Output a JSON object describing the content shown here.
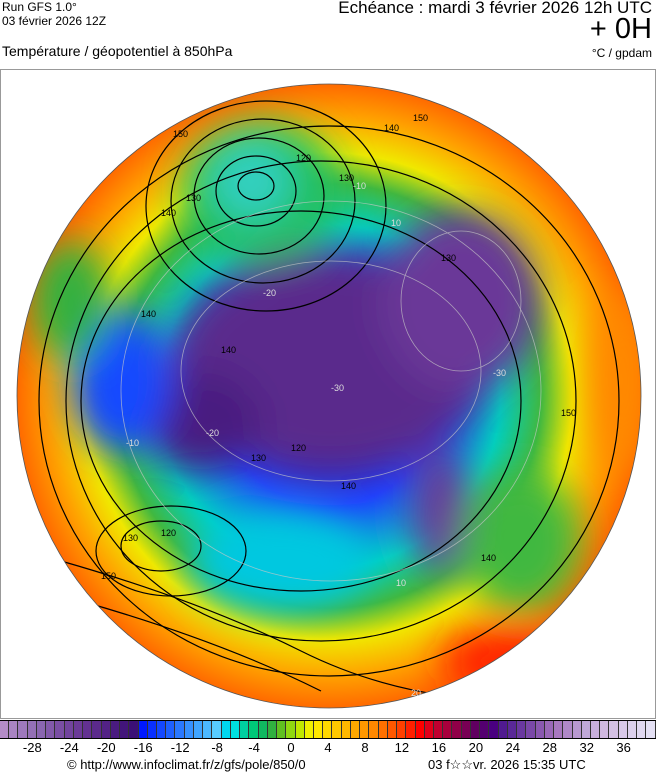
{
  "header": {
    "run": "Run GFS 1.0°",
    "run_date": "03 février 2026 12Z",
    "echeance": "Echéance : mardi 3 février 2026 12h UTC",
    "lead": "+ 0H",
    "parameter": "Température / géopotentiel à 850hPa",
    "units": "°C / gpdam"
  },
  "map": {
    "projection": "polar stereographic (north pole)",
    "contour_labels": [
      "150",
      "140",
      "130",
      "120",
      "140",
      "130",
      "150",
      "140",
      "130",
      "120",
      "130",
      "140",
      "150",
      "150",
      "140",
      "130",
      "120",
      "140"
    ],
    "isotherm_labels": [
      "-10",
      "10",
      "-20",
      "-30",
      "-30",
      "-20",
      "-10",
      "20",
      "10"
    ]
  },
  "colorbar": {
    "range_c": [
      -31,
      40
    ],
    "ticks": [
      "-28",
      "-24",
      "-20",
      "-16",
      "-12",
      "-8",
      "-4",
      "0",
      "4",
      "8",
      "12",
      "16",
      "20",
      "24",
      "28",
      "32",
      "36"
    ],
    "colors": [
      "#b48cc8",
      "#a984c2",
      "#9e79bd",
      "#9470b6",
      "#8a66b0",
      "#8259aa",
      "#7a4ea4",
      "#72449e",
      "#6b3a98",
      "#633192",
      "#5b2a8c",
      "#532286",
      "#4a1b80",
      "#42157a",
      "#3b1076",
      "#0018ff",
      "#0a30ff",
      "#1448ff",
      "#1e60ff",
      "#2a78ff",
      "#3690ff",
      "#40a4ff",
      "#4cb8ff",
      "#58ccff",
      "#00d8f0",
      "#00e0e0",
      "#00d0a0",
      "#00c878",
      "#10b860",
      "#30b040",
      "#60c020",
      "#90d810",
      "#c0e800",
      "#f0f000",
      "#ffe800",
      "#ffd800",
      "#ffc800",
      "#ffb800",
      "#ffa800",
      "#ff9800",
      "#ff8800",
      "#ff7000",
      "#ff5800",
      "#ff4000",
      "#ff2000",
      "#ff0000",
      "#e0001a",
      "#c00030",
      "#a8003c",
      "#900048",
      "#780054",
      "#600060",
      "#540070",
      "#4a0080",
      "#501a90",
      "#5a2898",
      "#6a38a0",
      "#7a48a8",
      "#8a58b0",
      "#9a68b8",
      "#a878c0",
      "#b088c8",
      "#b898d0",
      "#c0a8d8",
      "#c8b0dc",
      "#d0b8e0",
      "#d4c0e4",
      "#d8c8e8",
      "#dcd0ec",
      "#e0d8f0",
      "#e4e0f4"
    ]
  },
  "footer": {
    "copyright": "© http://www.infoclimat.fr/z/gfs/pole/850/0",
    "generated": "03 f☆☆vr. 2026 15:35 UTC"
  }
}
